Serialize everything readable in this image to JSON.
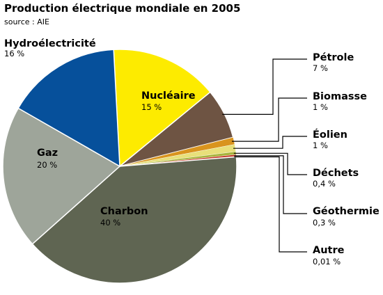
{
  "chart_data": {
    "type": "pie",
    "title": "Production électrique mondiale en 2005",
    "subtitle": "source : AIE",
    "slices": [
      {
        "key": "nucleaire",
        "label": "Nucléaire",
        "value_label": "15 %",
        "value": 15,
        "color": "#fdeb00"
      },
      {
        "key": "petrole",
        "label": "Pétrole",
        "value_label": "7 %",
        "value": 7,
        "color": "#6e5443"
      },
      {
        "key": "biomasse",
        "label": "Biomasse",
        "value_label": "1 %",
        "value": 1,
        "color": "#d9941e"
      },
      {
        "key": "eolien",
        "label": "Éolien",
        "value_label": "1 %",
        "value": 1,
        "color": "#e8e07a"
      },
      {
        "key": "dechets",
        "label": "Déchets",
        "value_label": "0,4 %",
        "value": 0.4,
        "color": "#a7b43a"
      },
      {
        "key": "geothermie",
        "label": "Géothermie",
        "value_label": "0,3 %",
        "value": 0.3,
        "color": "#c43a2a"
      },
      {
        "key": "autre",
        "label": "Autre",
        "value_label": "0,01 %",
        "value": 0.01,
        "color": "#444444"
      },
      {
        "key": "charbon",
        "label": "Charbon",
        "value_label": "40 %",
        "value": 40,
        "color": "#5f6552"
      },
      {
        "key": "gaz",
        "label": "Gaz",
        "value_label": "20 %",
        "value": 20,
        "color": "#9ea59a"
      },
      {
        "key": "hydro",
        "label": "Hydroélectricité",
        "value_label": "16 %",
        "value": 16,
        "color": "#06509b"
      }
    ]
  }
}
